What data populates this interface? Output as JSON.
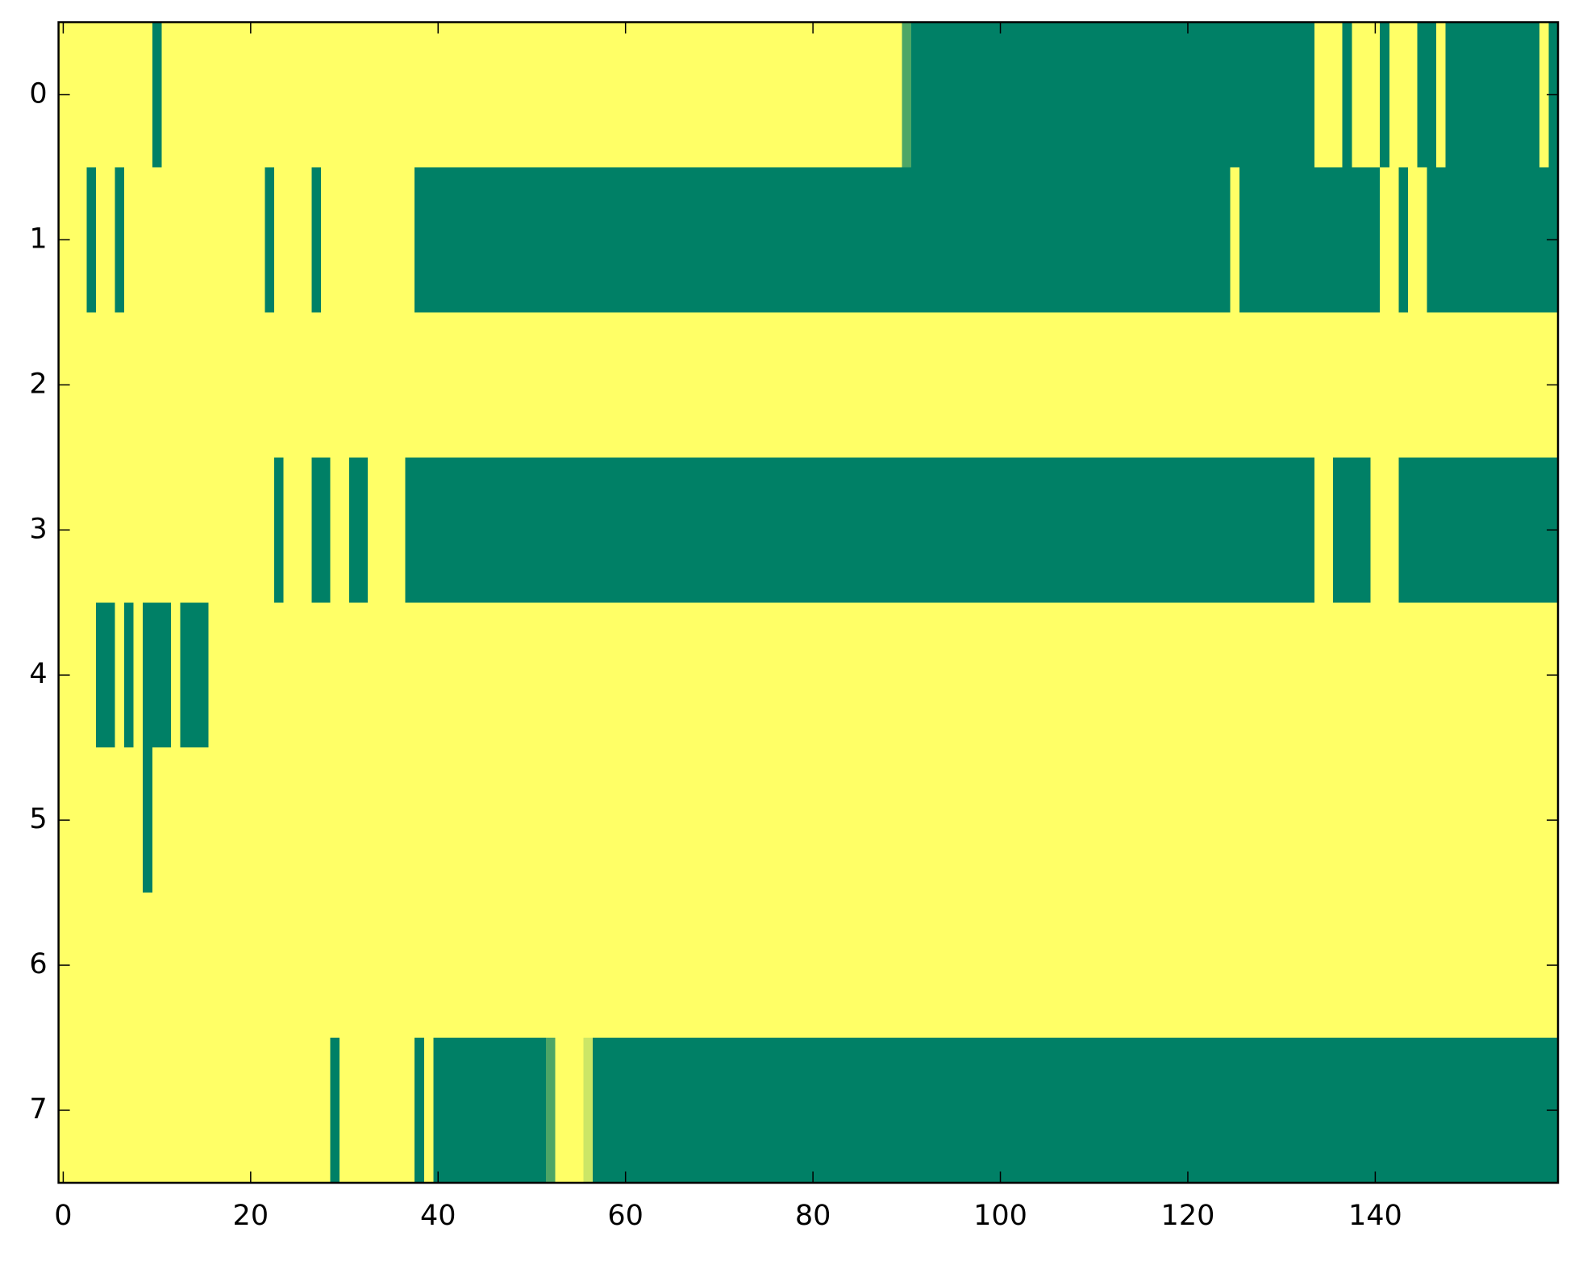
{
  "chart_data": {
    "type": "heatmap",
    "colormap": [
      "#ffff66",
      "#008066"
    ],
    "xlim": [
      -0.5,
      159.5
    ],
    "ylim": [
      7.5,
      -0.5
    ],
    "xticks": [
      0,
      20,
      40,
      60,
      80,
      100,
      120,
      140
    ],
    "yticks": [
      0,
      1,
      2,
      3,
      4,
      5,
      6,
      7
    ],
    "z": [
      [
        0,
        0,
        0,
        0,
        0,
        0,
        0,
        0,
        0,
        0,
        1,
        0,
        0,
        0,
        0,
        0,
        0,
        0,
        0,
        0,
        0,
        0,
        0,
        0,
        0,
        0,
        0,
        0,
        0,
        0,
        0,
        0,
        0,
        0,
        0,
        0,
        0,
        0,
        0,
        0,
        0,
        0,
        0,
        0,
        0,
        0,
        0,
        0,
        0,
        0,
        0,
        0,
        0,
        0,
        0,
        0,
        0,
        0,
        0,
        0,
        0,
        0,
        0,
        0,
        0,
        0,
        0,
        0,
        0,
        0,
        0,
        0,
        0,
        0,
        0,
        0,
        0,
        0,
        0,
        0,
        0,
        0,
        0,
        0,
        0,
        0,
        0,
        0,
        0,
        0,
        0.7,
        1,
        1,
        1,
        1,
        1,
        1,
        1,
        1,
        1,
        1,
        1,
        1,
        1,
        1,
        1,
        1,
        1,
        1,
        1,
        1,
        1,
        1,
        1,
        1,
        1,
        1,
        1,
        1,
        1,
        1,
        1,
        1,
        1,
        1,
        1,
        1,
        1,
        1,
        1,
        1,
        1,
        1,
        1,
        0,
        0,
        0,
        1,
        0,
        0,
        0,
        1,
        0,
        0,
        0,
        1,
        1,
        0,
        1,
        1,
        1,
        1,
        1,
        1,
        1,
        1,
        1,
        1,
        0,
        1
      ],
      [
        0,
        0,
        0,
        1,
        0,
        0,
        1,
        0,
        0,
        0,
        0,
        0,
        0,
        0,
        0,
        0,
        0,
        0,
        0,
        0,
        0,
        0,
        1,
        0,
        0,
        0,
        0,
        1,
        0,
        0,
        0,
        0,
        0,
        0,
        0,
        0,
        0,
        0,
        1,
        1,
        1,
        1,
        1,
        1,
        1,
        1,
        1,
        1,
        1,
        1,
        1,
        1,
        1,
        1,
        1,
        1,
        1,
        1,
        1,
        1,
        1,
        1,
        1,
        1,
        1,
        1,
        1,
        1,
        1,
        1,
        1,
        1,
        1,
        1,
        1,
        1,
        1,
        1,
        1,
        1,
        1,
        1,
        1,
        1,
        1,
        1,
        1,
        1,
        1,
        1,
        1,
        1,
        1,
        1,
        1,
        1,
        1,
        1,
        1,
        1,
        1,
        1,
        1,
        1,
        1,
        1,
        1,
        1,
        1,
        1,
        1,
        1,
        1,
        1,
        1,
        1,
        1,
        1,
        1,
        1,
        1,
        1,
        1,
        1,
        1,
        0,
        1,
        1,
        1,
        1,
        1,
        1,
        1,
        1,
        1,
        1,
        1,
        1,
        1,
        1,
        1,
        0,
        0,
        1,
        0,
        0,
        1,
        1,
        1,
        1,
        1,
        1,
        1,
        1,
        1,
        1,
        1,
        1,
        1,
        1
      ],
      [
        0,
        0,
        0,
        0,
        0,
        0,
        0,
        0,
        0,
        0,
        0,
        0,
        0,
        0,
        0,
        0,
        0,
        0,
        0,
        0,
        0,
        0,
        0,
        0,
        0,
        0,
        0,
        0,
        0,
        0,
        0,
        0,
        0,
        0,
        0,
        0,
        0,
        0,
        0,
        0,
        0,
        0,
        0,
        0,
        0,
        0,
        0,
        0,
        0,
        0,
        0,
        0,
        0,
        0,
        0,
        0,
        0,
        0,
        0,
        0,
        0,
        0,
        0,
        0,
        0,
        0,
        0,
        0,
        0,
        0,
        0,
        0,
        0,
        0,
        0,
        0,
        0,
        0,
        0,
        0,
        0,
        0,
        0,
        0,
        0,
        0,
        0,
        0,
        0,
        0,
        0,
        0,
        0,
        0,
        0,
        0,
        0,
        0,
        0,
        0,
        0,
        0,
        0,
        0,
        0,
        0,
        0,
        0,
        0,
        0,
        0,
        0,
        0,
        0,
        0,
        0,
        0,
        0,
        0,
        0,
        0,
        0,
        0,
        0,
        0,
        0,
        0,
        0,
        0,
        0,
        0,
        0,
        0,
        0,
        0,
        0,
        0,
        0,
        0,
        0,
        0,
        0,
        0,
        0,
        0,
        0,
        0,
        0,
        0,
        0,
        0,
        0,
        0,
        0,
        0,
        0,
        0,
        0,
        0,
        0
      ],
      [
        0,
        0,
        0,
        0,
        0,
        0,
        0,
        0,
        0,
        0,
        0,
        0,
        0,
        0,
        0,
        0,
        0,
        0,
        0,
        0,
        0,
        0,
        0,
        1,
        0,
        0,
        0,
        1,
        1,
        0,
        0,
        1,
        1,
        0,
        0,
        0,
        0,
        1,
        1,
        1,
        1,
        1,
        1,
        1,
        1,
        1,
        1,
        1,
        1,
        1,
        1,
        1,
        1,
        1,
        1,
        1,
        1,
        1,
        1,
        1,
        1,
        1,
        1,
        1,
        1,
        1,
        1,
        1,
        1,
        1,
        1,
        1,
        1,
        1,
        1,
        1,
        1,
        1,
        1,
        1,
        1,
        1,
        1,
        1,
        1,
        1,
        1,
        1,
        1,
        1,
        1,
        1,
        1,
        1,
        1,
        1,
        1,
        1,
        1,
        1,
        1,
        1,
        1,
        1,
        1,
        1,
        1,
        1,
        1,
        1,
        1,
        1,
        1,
        1,
        1,
        1,
        1,
        1,
        1,
        1,
        1,
        1,
        1,
        1,
        1,
        1,
        1,
        1,
        1,
        1,
        1,
        1,
        1,
        1,
        0,
        0,
        1,
        1,
        1,
        1,
        0,
        0,
        0,
        1,
        1,
        1,
        1,
        1,
        1,
        1,
        1,
        1,
        1,
        1,
        1,
        1,
        1,
        1,
        1,
        1
      ],
      [
        0,
        0,
        0,
        0,
        1,
        1,
        0,
        1,
        0,
        1,
        1,
        1,
        0,
        1,
        1,
        1,
        0,
        0,
        0,
        0,
        0,
        0,
        0,
        0,
        0,
        0,
        0,
        0,
        0,
        0,
        0,
        0,
        0,
        0,
        0,
        0,
        0,
        0,
        0,
        0,
        0,
        0,
        0,
        0,
        0,
        0,
        0,
        0,
        0,
        0,
        0,
        0,
        0,
        0,
        0,
        0,
        0,
        0,
        0,
        0,
        0,
        0,
        0,
        0,
        0,
        0,
        0,
        0,
        0,
        0,
        0,
        0,
        0,
        0,
        0,
        0,
        0,
        0,
        0,
        0,
        0,
        0,
        0,
        0,
        0,
        0,
        0,
        0,
        0,
        0,
        0,
        0,
        0,
        0,
        0,
        0,
        0,
        0,
        0,
        0,
        0,
        0,
        0,
        0,
        0,
        0,
        0,
        0,
        0,
        0,
        0,
        0,
        0,
        0,
        0,
        0,
        0,
        0,
        0,
        0,
        0,
        0,
        0,
        0,
        0,
        0,
        0,
        0,
        0,
        0,
        0,
        0,
        0,
        0,
        0,
        0,
        0,
        0,
        0,
        0,
        0,
        0,
        0,
        0,
        0,
        0,
        0,
        0,
        0,
        0,
        0,
        0,
        0,
        0,
        0,
        0,
        0,
        0,
        0,
        0
      ],
      [
        0,
        0,
        0,
        0,
        0,
        0,
        0,
        0,
        0,
        1,
        0,
        0,
        0,
        0,
        0,
        0,
        0,
        0,
        0,
        0,
        0,
        0,
        0,
        0,
        0,
        0,
        0,
        0,
        0,
        0,
        0,
        0,
        0,
        0,
        0,
        0,
        0,
        0,
        0,
        0,
        0,
        0,
        0,
        0,
        0,
        0,
        0,
        0,
        0,
        0,
        0,
        0,
        0,
        0,
        0,
        0,
        0,
        0,
        0,
        0,
        0,
        0,
        0,
        0,
        0,
        0,
        0,
        0,
        0,
        0,
        0,
        0,
        0,
        0,
        0,
        0,
        0,
        0,
        0,
        0,
        0,
        0,
        0,
        0,
        0,
        0,
        0,
        0,
        0,
        0,
        0,
        0,
        0,
        0,
        0,
        0,
        0,
        0,
        0,
        0,
        0,
        0,
        0,
        0,
        0,
        0,
        0,
        0,
        0,
        0,
        0,
        0,
        0,
        0,
        0,
        0,
        0,
        0,
        0,
        0,
        0,
        0,
        0,
        0,
        0,
        0,
        0,
        0,
        0,
        0,
        0,
        0,
        0,
        0,
        0,
        0,
        0,
        0,
        0,
        0,
        0,
        0,
        0,
        0,
        0,
        0,
        0,
        0,
        0,
        0,
        0,
        0,
        0,
        0,
        0,
        0,
        0,
        0,
        0,
        0
      ],
      [
        0,
        0,
        0,
        0,
        0,
        0,
        0,
        0,
        0,
        0,
        0,
        0,
        0,
        0,
        0,
        0,
        0,
        0,
        0,
        0,
        0,
        0,
        0,
        0,
        0,
        0,
        0,
        0,
        0,
        0,
        0,
        0,
        0,
        0,
        0,
        0,
        0,
        0,
        0,
        0,
        0,
        0,
        0,
        0,
        0,
        0,
        0,
        0,
        0,
        0,
        0,
        0,
        0,
        0,
        0,
        0,
        0,
        0,
        0,
        0,
        0,
        0,
        0,
        0,
        0,
        0,
        0,
        0,
        0,
        0,
        0,
        0,
        0,
        0,
        0,
        0,
        0,
        0,
        0,
        0,
        0,
        0,
        0,
        0,
        0,
        0,
        0,
        0,
        0,
        0,
        0,
        0,
        0,
        0,
        0,
        0,
        0,
        0,
        0,
        0,
        0,
        0,
        0,
        0,
        0,
        0,
        0,
        0,
        0,
        0,
        0,
        0,
        0,
        0,
        0,
        0,
        0,
        0,
        0,
        0,
        0,
        0,
        0,
        0,
        0,
        0,
        0,
        0,
        0,
        0,
        0,
        0,
        0,
        0,
        0,
        0,
        0,
        0,
        0,
        0,
        0,
        0,
        0,
        0,
        0,
        0,
        0,
        0,
        0,
        0,
        0,
        0,
        0,
        0,
        0,
        0,
        0,
        0,
        0,
        0
      ],
      [
        0,
        0,
        0,
        0,
        0,
        0,
        0,
        0,
        0,
        0,
        0,
        0,
        0,
        0,
        0,
        0,
        0,
        0,
        0,
        0,
        0,
        0,
        0,
        0,
        0,
        0,
        0,
        0,
        0,
        1,
        0,
        0,
        0,
        0,
        0,
        0,
        0,
        0,
        1,
        0,
        1,
        1,
        1,
        1,
        1,
        1,
        1,
        1,
        1,
        1,
        1,
        1,
        0.7,
        0,
        0,
        0,
        0.2,
        1,
        1,
        1,
        1,
        1,
        1,
        1,
        1,
        1,
        1,
        1,
        1,
        1,
        1,
        1,
        1,
        1,
        1,
        1,
        1,
        1,
        1,
        1,
        1,
        1,
        1,
        1,
        1,
        1,
        1,
        1,
        1,
        1,
        1,
        1,
        1,
        1,
        1,
        1,
        1,
        1,
        1,
        1,
        1,
        1,
        1,
        1,
        1,
        1,
        1,
        1,
        1,
        1,
        1,
        1,
        1,
        1,
        1,
        1,
        1,
        1,
        1,
        1,
        1,
        1,
        1,
        1,
        1,
        1,
        1,
        1,
        1,
        1,
        1,
        1,
        1,
        1,
        1,
        1,
        1,
        1,
        1,
        1,
        1,
        1,
        1,
        1,
        1,
        1,
        1,
        1,
        1,
        1,
        1,
        1,
        1,
        1,
        1,
        1,
        1,
        1,
        1,
        1
      ]
    ]
  }
}
